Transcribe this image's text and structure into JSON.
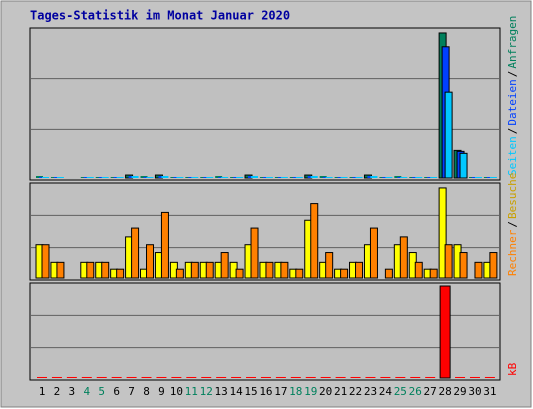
{
  "chart_data": [
    {
      "type": "bar",
      "title": "Tages-Statistik im Monat Januar 2020",
      "ylim": [
        0,
        150
      ],
      "legend_separator": "/",
      "series": [
        {
          "name": "Anfragen",
          "color": "#00805c",
          "values": [
            2,
            1,
            0,
            1,
            1,
            1,
            3,
            2,
            3,
            1,
            1,
            1,
            2,
            1,
            3,
            1,
            1,
            1,
            3,
            2,
            1,
            1,
            3,
            1,
            2,
            1,
            1,
            147,
            28,
            1,
            1
          ]
        },
        {
          "name": "Dateien",
          "color": "#0040ff",
          "values": [
            1,
            1,
            0,
            1,
            1,
            1,
            2,
            1,
            2,
            1,
            1,
            1,
            1,
            1,
            2,
            1,
            1,
            1,
            2,
            1,
            1,
            1,
            2,
            1,
            1,
            1,
            1,
            133,
            27,
            1,
            1
          ]
        },
        {
          "name": "Seiten",
          "color": "#00c8ff",
          "values": [
            1,
            1,
            0,
            1,
            1,
            1,
            2,
            1,
            2,
            1,
            1,
            1,
            1,
            1,
            2,
            1,
            1,
            1,
            2,
            1,
            1,
            1,
            2,
            1,
            1,
            1,
            1,
            87,
            25,
            1,
            1
          ]
        }
      ]
    },
    {
      "type": "bar",
      "ylim": [
        0,
        95
      ],
      "legend_separator": "/",
      "series": [
        {
          "name": "Besuche",
          "color": "#ffff00",
          "values": [
            34,
            16,
            0,
            16,
            16,
            9,
            42,
            9,
            26,
            16,
            16,
            16,
            16,
            16,
            34,
            16,
            16,
            9,
            59,
            16,
            9,
            16,
            34,
            0,
            34,
            26,
            9,
            92,
            34,
            0,
            16
          ]
        },
        {
          "name": "Rechner",
          "color": "#ff8000",
          "values": [
            34,
            16,
            0,
            16,
            16,
            9,
            51,
            34,
            67,
            9,
            16,
            16,
            26,
            9,
            51,
            16,
            16,
            9,
            76,
            26,
            9,
            16,
            51,
            9,
            42,
            16,
            9,
            34,
            26,
            16,
            26
          ]
        }
      ]
    },
    {
      "type": "bar",
      "ylim": [
        0,
        92
      ],
      "categories": [
        "1",
        "2",
        "3",
        "4",
        "5",
        "6",
        "7",
        "8",
        "9",
        "10",
        "11",
        "12",
        "13",
        "14",
        "15",
        "16",
        "17",
        "18",
        "19",
        "20",
        "21",
        "22",
        "23",
        "24",
        "25",
        "26",
        "27",
        "28",
        "29",
        "30",
        "31"
      ],
      "category_colors": [
        "#000",
        "#000",
        "#000",
        "#00805c",
        "#00805c",
        "#000",
        "#000",
        "#000",
        "#000",
        "#000",
        "#00805c",
        "#00805c",
        "#000",
        "#000",
        "#000",
        "#000",
        "#000",
        "#00805c",
        "#00805c",
        "#000",
        "#000",
        "#000",
        "#000",
        "#000",
        "#00805c",
        "#00805c",
        "#000",
        "#000",
        "#000",
        "#000",
        "#000"
      ],
      "series": [
        {
          "name": "kB",
          "color": "#ff0000",
          "values": [
            1,
            1,
            1,
            1,
            1,
            1,
            1,
            1,
            1,
            1,
            1,
            1,
            1,
            1,
            1,
            1,
            1,
            1,
            1,
            1,
            1,
            1,
            1,
            1,
            1,
            1,
            1,
            91,
            1,
            1,
            1
          ]
        }
      ]
    }
  ]
}
